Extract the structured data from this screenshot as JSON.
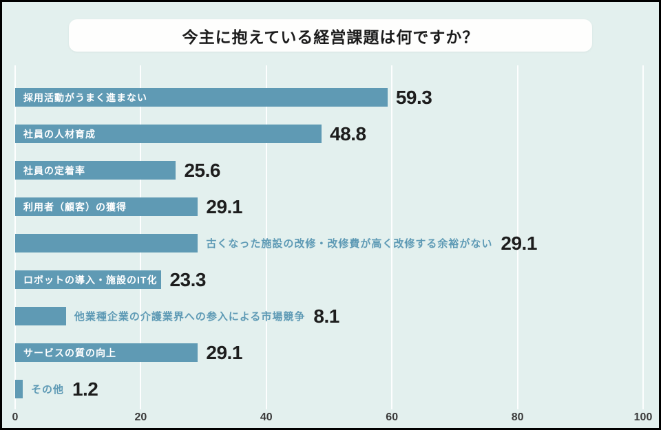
{
  "chart_data": {
    "type": "bar",
    "orientation": "horizontal",
    "title": "今主に抱えている経営課題は何ですか？",
    "categories": [
      "採用活動がうまく進まない",
      "社員の人材育成",
      "社員の定着率",
      "利用者（顧客）の獲得",
      "古くなった施設の改修・改修費が高く改修する余裕がない",
      "ロボットの導入・施設のIT化",
      "他業種企業の介護業界への参入による市場競争",
      "サービスの質の向上",
      "その他"
    ],
    "values": [
      59.3,
      48.8,
      25.6,
      29.1,
      29.1,
      23.3,
      8.1,
      29.1,
      1.2
    ],
    "label_positions": [
      "inside",
      "inside",
      "inside",
      "inside",
      "outside",
      "inside",
      "outside",
      "inside",
      "outside"
    ],
    "xlabel": "",
    "ylabel": "",
    "xlim": [
      0,
      100
    ],
    "x_ticks": [
      0,
      20,
      40,
      60,
      80,
      100
    ],
    "grid": true,
    "legend": "none",
    "bar_color": "#5f9ab4",
    "outside_label_color": "#5e9ab5",
    "value_color": "#1d1d1d",
    "background_color": "#e3f0ee"
  }
}
